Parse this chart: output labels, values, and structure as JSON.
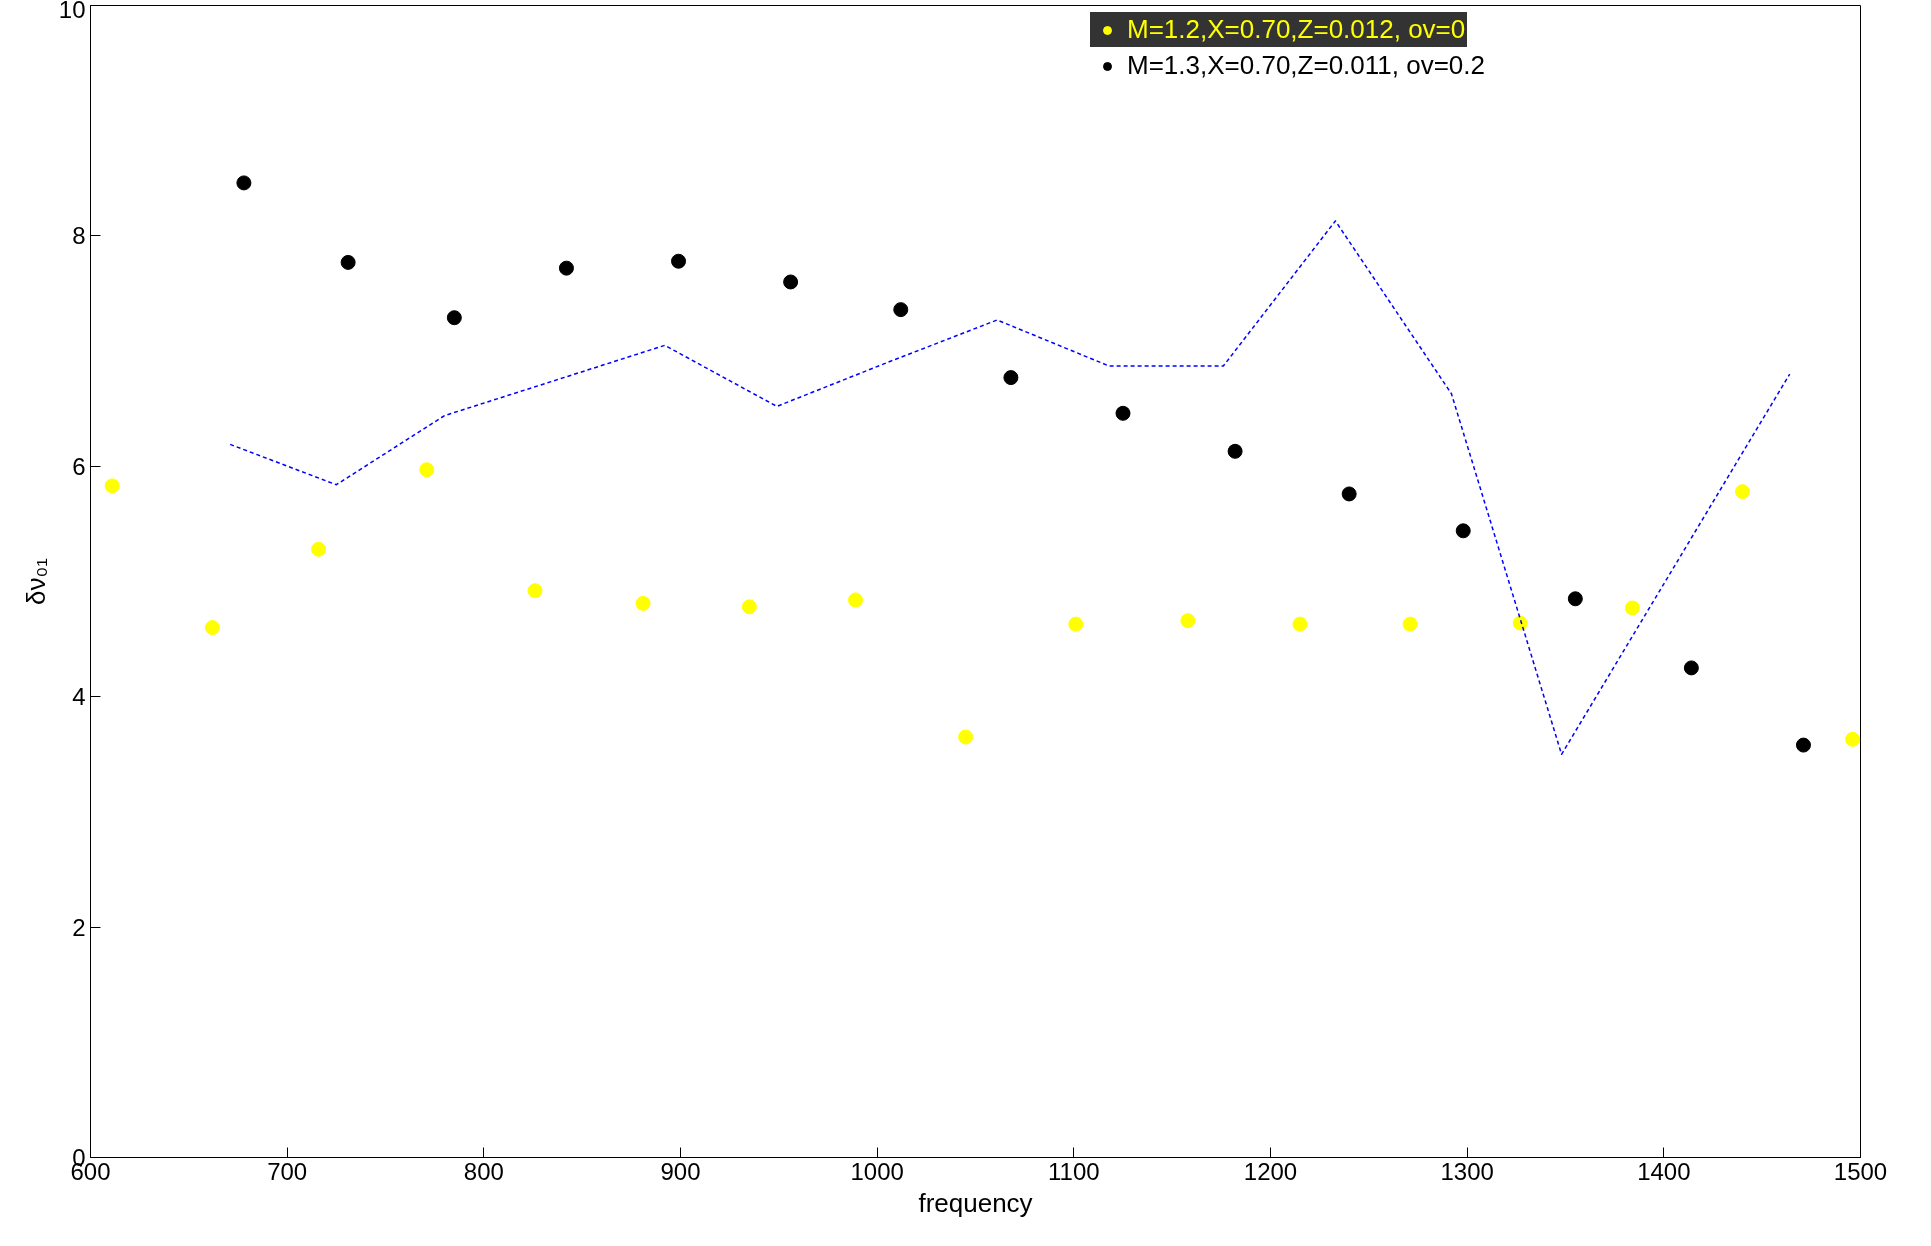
{
  "chart_data": {
    "type": "scatter",
    "xlabel": "frequency",
    "ylabel": "δν₀₁",
    "xlim": [
      600,
      1500
    ],
    "xticks": [
      600,
      700,
      800,
      900,
      1000,
      1100,
      1200,
      1300,
      1400,
      1500
    ],
    "ylim": [
      0,
      10
    ],
    "yticks": [
      0,
      2,
      4,
      6,
      8,
      10
    ],
    "grid": false,
    "legend": "top right",
    "marker": "circle",
    "series": [
      {
        "name": "M=1.2,X=0.70,Z=0.012, ov=0",
        "color": "#ffff00",
        "x": [
          611,
          662,
          716,
          771,
          826,
          881,
          935,
          989,
          1045,
          1101,
          1158,
          1215,
          1271,
          1327,
          1384,
          1440,
          1496
        ],
        "values": [
          5.83,
          4.6,
          5.28,
          5.97,
          4.92,
          4.81,
          4.78,
          4.84,
          3.65,
          4.63,
          4.66,
          4.63,
          4.63,
          4.64,
          4.77,
          5.78,
          3.63
        ]
      },
      {
        "name": "M=1.3,X=0.70,Z=0.011, ov=0.2",
        "color": "#000000",
        "x": [
          678,
          731,
          785,
          842,
          899,
          956,
          1012,
          1068,
          1125,
          1182,
          1240,
          1298,
          1355,
          1414,
          1471
        ],
        "values": [
          8.46,
          7.77,
          7.29,
          7.72,
          7.78,
          7.6,
          7.36,
          6.77,
          6.46,
          6.13,
          5.76,
          5.44,
          4.85,
          4.25,
          3.58
        ]
      },
      {
        "type": "line",
        "line_style": "dotted",
        "marker": "none",
        "color": "#0000ff",
        "x": [
          671,
          725,
          780,
          837,
          892,
          949,
          1005,
          1061,
          1118,
          1176,
          1233,
          1292,
          1348,
          1464
        ],
        "values": [
          6.19,
          5.84,
          6.44,
          6.75,
          7.05,
          6.52,
          6.9,
          7.27,
          6.87,
          6.87,
          8.13,
          6.63,
          3.5,
          6.8
        ]
      }
    ]
  }
}
